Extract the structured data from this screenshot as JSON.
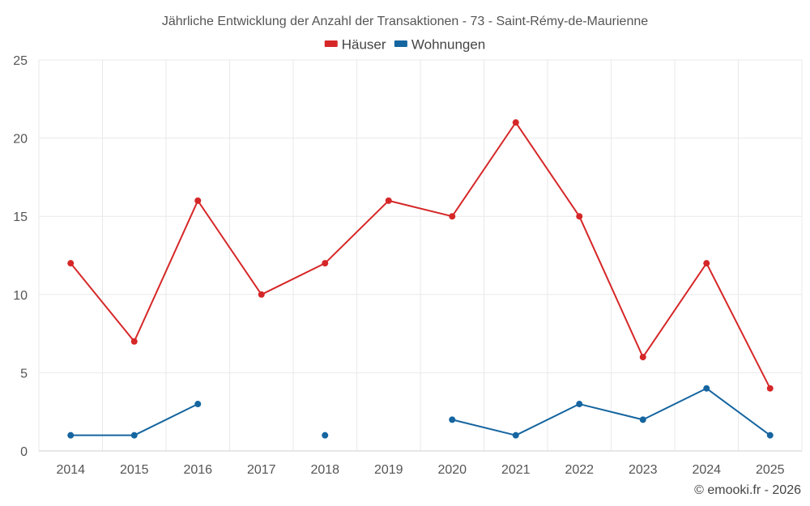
{
  "chart_data": {
    "type": "line",
    "title": "Jährliche Entwicklung der Anzahl der Transaktionen - 73 - Saint-Rémy-de-Maurienne",
    "categories": [
      "2014",
      "2015",
      "2016",
      "2017",
      "2018",
      "2019",
      "2020",
      "2021",
      "2022",
      "2023",
      "2024",
      "2025"
    ],
    "series": [
      {
        "name": "Häuser",
        "color": "#d62728",
        "values": [
          12,
          7,
          16,
          10,
          12,
          16,
          15,
          21,
          15,
          6,
          12,
          4
        ]
      },
      {
        "name": "Wohnungen",
        "color": "#1565a0",
        "values": [
          1,
          1,
          3,
          null,
          1,
          null,
          2,
          1,
          3,
          2,
          4,
          1
        ]
      }
    ],
    "ylim": [
      0,
      25
    ],
    "yticks": [
      0,
      5,
      10,
      15,
      20,
      25
    ],
    "xlabel": "",
    "ylabel": "",
    "grid": true,
    "legend": "top-center"
  },
  "credit": "© emooki.fr - 2026"
}
